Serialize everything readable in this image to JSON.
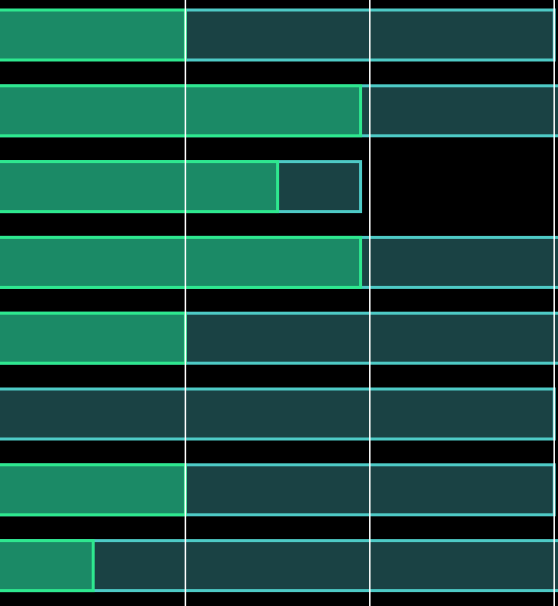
{
  "chart_data": {
    "type": "bar",
    "orientation": "horizontal",
    "stacked": false,
    "overlaid": true,
    "categories": [
      "",
      "",
      "",
      "",
      "",
      "",
      "",
      ""
    ],
    "series": [
      {
        "values": [
          2.0,
          3.9,
          3.0,
          3.9,
          2.0,
          0.0,
          2.0,
          1.0
        ]
      },
      {
        "values": [
          6.0,
          6.1,
          3.9,
          6.1,
          6.1,
          6.0,
          6.0,
          6.1
        ]
      }
    ],
    "xlim": [
      0,
      6.0
    ],
    "gridlines_x": [
      2,
      4,
      6
    ],
    "grid": true,
    "legend": "none",
    "colors": {
      "background": "#000000",
      "gridline": "#ffffff",
      "progress_fill": "#1b8a66",
      "progress_stroke": "#2ee88f",
      "track_fill": "#1a4244",
      "track_stroke": "#4ecac6"
    }
  }
}
